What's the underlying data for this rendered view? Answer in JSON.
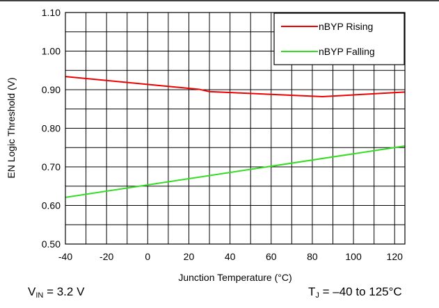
{
  "chart_data": {
    "type": "line",
    "xlabel": "Junction Temperature (°C)",
    "ylabel": "EN Logic Threshold (V)",
    "xlim": [
      -40,
      125
    ],
    "ylim": [
      0.5,
      1.1
    ],
    "x_ticks": [
      -40,
      -20,
      0,
      20,
      40,
      60,
      80,
      100,
      120
    ],
    "y_ticks": [
      0.5,
      0.6,
      0.7,
      0.8,
      0.9,
      1.0,
      1.1
    ],
    "y_tick_labels": [
      "0.50",
      "0.60",
      "0.70",
      "0.80",
      "0.90",
      "1.00",
      "1.10"
    ],
    "grid": true,
    "legend_position": "top-right",
    "series": [
      {
        "name": "nBYP Rising",
        "color": "#ee0000",
        "x": [
          -40,
          25,
          30,
          85,
          125
        ],
        "y": [
          0.934,
          0.901,
          0.895,
          0.882,
          0.894
        ]
      },
      {
        "name": "nBYP Falling",
        "color": "#33dd22",
        "x": [
          -40,
          125
        ],
        "y": [
          0.621,
          0.754
        ]
      }
    ]
  },
  "footnote_left": {
    "main": "V",
    "sub": "IN",
    "rest": " = 3.2 V"
  },
  "footnote_right": {
    "main": "T",
    "sub": "J",
    "rest": " = –40 to 125°C"
  }
}
